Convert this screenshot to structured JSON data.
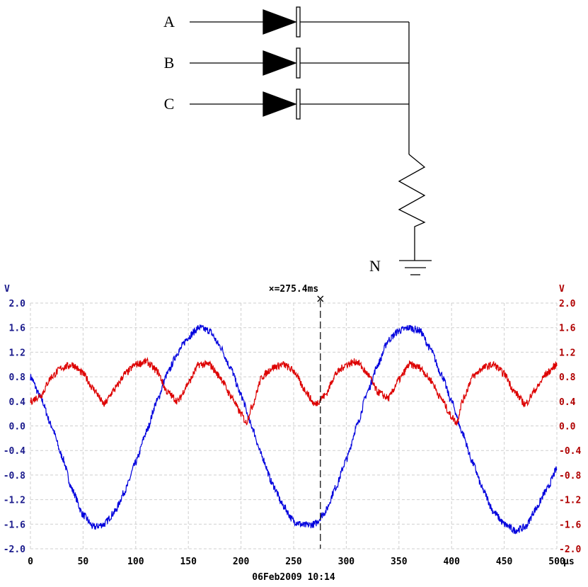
{
  "circuit": {
    "inputs": [
      "A",
      "B",
      "C"
    ],
    "ground_label": "N"
  },
  "chart_data": {
    "type": "line",
    "xlabel": "",
    "x_unit_label": "µs",
    "xlim": [
      0,
      500
    ],
    "x_ticks": [
      "0",
      "50",
      "100",
      "150",
      "200",
      "250",
      "300",
      "350",
      "400",
      "450",
      "500"
    ],
    "left_axis_unit": "V",
    "right_axis_unit": "V",
    "ylim": [
      -2.0,
      2.0
    ],
    "y_ticks": [
      "2.0",
      "1.6",
      "1.2",
      "0.8",
      "0.4",
      "0.0",
      "-0.4",
      "-0.8",
      "-1.2",
      "-1.6",
      "-2.0"
    ],
    "cursor": {
      "label": "×=275.4ms",
      "x": 275.4
    },
    "timestamp": "06Feb2009  10:14",
    "grid": true,
    "series": [
      {
        "color": "#0000dd",
        "axis": "left",
        "x": [
          0,
          10,
          20,
          30,
          40,
          50,
          60,
          70,
          80,
          90,
          100,
          110,
          120,
          130,
          140,
          150,
          160,
          170,
          180,
          190,
          200,
          210,
          220,
          230,
          240,
          250,
          260,
          270,
          280,
          290,
          300,
          310,
          320,
          330,
          340,
          350,
          360,
          370,
          380,
          390,
          400,
          410,
          420,
          430,
          440,
          450,
          460,
          470,
          480,
          490,
          500
        ],
        "values": [
          0.8,
          0.45,
          0.0,
          -0.5,
          -1.05,
          -1.45,
          -1.65,
          -1.6,
          -1.4,
          -1.05,
          -0.6,
          -0.1,
          0.4,
          0.85,
          1.2,
          1.45,
          1.6,
          1.55,
          1.3,
          0.95,
          0.5,
          0.0,
          -0.5,
          -0.95,
          -1.3,
          -1.55,
          -1.62,
          -1.6,
          -1.4,
          -1.0,
          -0.55,
          0.0,
          0.55,
          1.0,
          1.4,
          1.55,
          1.6,
          1.55,
          1.25,
          0.85,
          0.4,
          -0.1,
          -0.6,
          -1.05,
          -1.4,
          -1.6,
          -1.7,
          -1.65,
          -1.35,
          -1.05,
          -0.7
        ]
      },
      {
        "color": "#dd0000",
        "axis": "right",
        "x": [
          0,
          10,
          20,
          30,
          40,
          50,
          60,
          70,
          80,
          90,
          100,
          110,
          120,
          130,
          140,
          150,
          160,
          170,
          180,
          190,
          200,
          205,
          210,
          220,
          230,
          240,
          250,
          260,
          270,
          280,
          290,
          300,
          310,
          320,
          330,
          340,
          350,
          360,
          370,
          380,
          390,
          400,
          405,
          410,
          420,
          430,
          440,
          450,
          460,
          470,
          480,
          490,
          500
        ],
        "values": [
          0.4,
          0.5,
          0.8,
          0.95,
          1.0,
          0.85,
          0.6,
          0.35,
          0.6,
          0.85,
          1.0,
          1.05,
          0.9,
          0.55,
          0.4,
          0.7,
          1.0,
          1.0,
          0.8,
          0.5,
          0.2,
          0.05,
          0.3,
          0.8,
          0.95,
          1.0,
          0.9,
          0.6,
          0.35,
          0.5,
          0.85,
          1.0,
          1.05,
          0.85,
          0.55,
          0.45,
          0.75,
          1.0,
          0.95,
          0.75,
          0.45,
          0.15,
          0.05,
          0.4,
          0.8,
          0.95,
          1.0,
          0.85,
          0.55,
          0.35,
          0.6,
          0.85,
          1.0
        ]
      }
    ]
  }
}
